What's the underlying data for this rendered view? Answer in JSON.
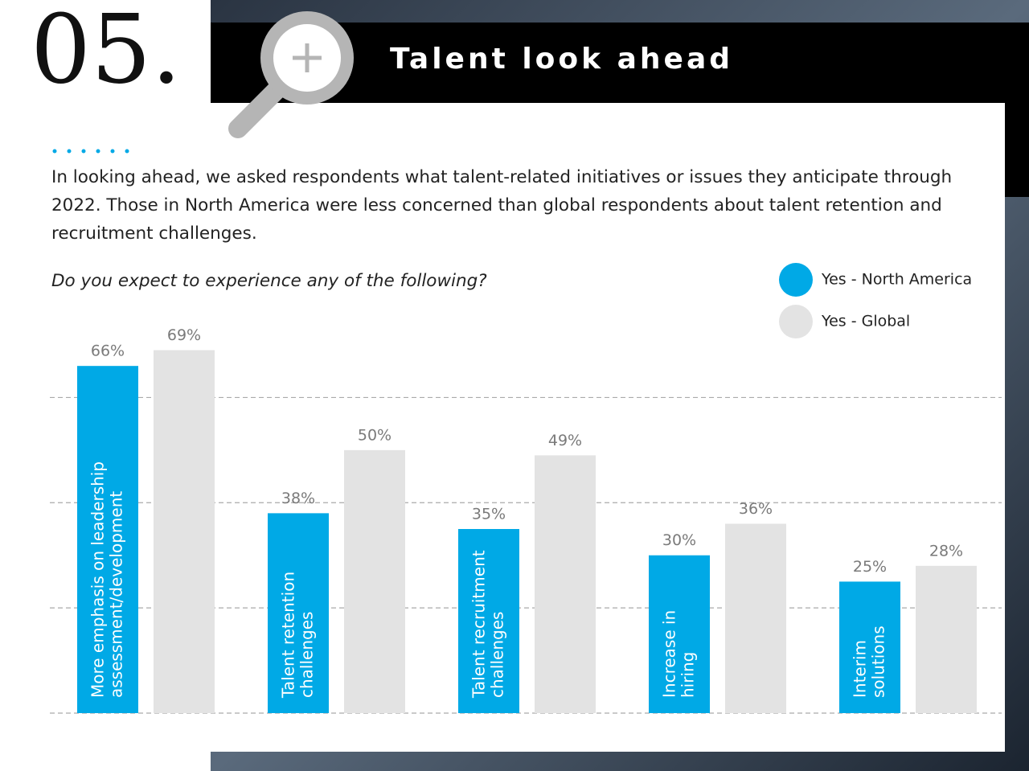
{
  "header": {
    "number": "05.",
    "title": "Talent look ahead"
  },
  "intro": "In looking ahead, we asked respondents what talent-related initiatives or issues they anticipate through 2022. Those in North America were less concerned than global respondents about talent retention and recruitment challenges.",
  "chart_data": {
    "type": "bar",
    "subtitle": "Do you expect to experience any of the following?",
    "categories": [
      [
        "More emphasis on leadership",
        "assessment/development"
      ],
      [
        "Talent retention",
        "challenges"
      ],
      [
        "Talent recruitment",
        "challenges"
      ],
      [
        "Increase in",
        "hiring"
      ],
      [
        "Interim",
        "solutions"
      ]
    ],
    "series": [
      {
        "name": "Yes - North America",
        "color": "#00a9e6",
        "values": [
          66,
          38,
          35,
          30,
          25
        ],
        "value_labels": [
          "66%",
          "38%",
          "35%",
          "30%",
          "25%"
        ]
      },
      {
        "name": "Yes - Global",
        "color": "#e3e3e3",
        "values": [
          69,
          50,
          49,
          36,
          28
        ],
        "value_labels": [
          "69%",
          "50%",
          "49%",
          "36%",
          "28%"
        ]
      }
    ],
    "ylim": [
      0,
      70
    ],
    "yticks": [
      0,
      20,
      40,
      60
    ],
    "grid": true,
    "legend": "top-right"
  }
}
